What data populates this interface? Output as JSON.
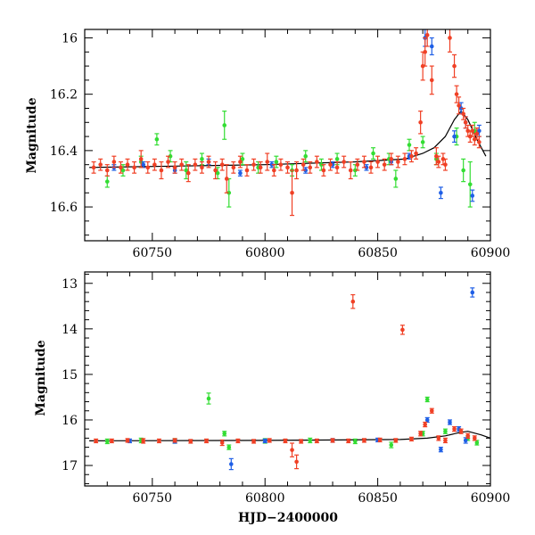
{
  "figure": {
    "bottom_xlabel": "HJD−2400000"
  },
  "colors": {
    "green": "#33dd33",
    "blue": "#1f5fe6",
    "red": "#f04025",
    "model": "#000000",
    "frame": "#000000"
  },
  "chart_data": [
    {
      "type": "scatter",
      "title": "",
      "xlabel": "",
      "ylabel": "Magnitude",
      "xlim": [
        60720,
        60900
      ],
      "ylim": [
        16.72,
        15.97
      ],
      "y_inverted": true,
      "xticks": [
        60750,
        60800,
        60850,
        60900
      ],
      "yticks": [
        16.0,
        16.2,
        16.4,
        16.6
      ],
      "xtick_labels": [
        "60750",
        "60800",
        "60850",
        "60900"
      ],
      "ytick_labels": [
        "16",
        "16.2",
        "16.4",
        "16.6"
      ],
      "grid": false,
      "legend": "none",
      "model_curve": {
        "x": [
          60722,
          60760,
          60800,
          60840,
          60862,
          60870,
          60875,
          60880,
          60884,
          60887,
          60890,
          60894,
          60898
        ],
        "y": [
          16.46,
          16.455,
          16.45,
          16.44,
          16.43,
          16.41,
          16.39,
          16.35,
          16.29,
          16.26,
          16.29,
          16.36,
          16.42
        ]
      },
      "series": [
        {
          "color": "green",
          "points": [
            [
              60730,
              16.51,
              0.02
            ],
            [
              60737,
              16.47,
              0.02
            ],
            [
              60745,
              16.44,
              0.02
            ],
            [
              60752,
              16.36,
              0.02
            ],
            [
              60758,
              16.42,
              0.02
            ],
            [
              60765,
              16.47,
              0.03
            ],
            [
              60772,
              16.43,
              0.02
            ],
            [
              60779,
              16.48,
              0.02
            ],
            [
              60782,
              16.31,
              0.05
            ],
            [
              60784,
              16.55,
              0.05
            ],
            [
              60790,
              16.43,
              0.02
            ],
            [
              60797,
              16.46,
              0.02
            ],
            [
              60805,
              16.44,
              0.02
            ],
            [
              60812,
              16.47,
              0.02
            ],
            [
              60818,
              16.42,
              0.02
            ],
            [
              60825,
              16.45,
              0.02
            ],
            [
              60832,
              16.43,
              0.02
            ],
            [
              60840,
              16.47,
              0.02
            ],
            [
              60848,
              16.41,
              0.02
            ],
            [
              60855,
              16.43,
              0.02
            ],
            [
              60858,
              16.5,
              0.03
            ],
            [
              60864,
              16.38,
              0.02
            ],
            [
              60870,
              16.37,
              0.02
            ],
            [
              60876,
              16.43,
              0.02
            ],
            [
              60885,
              16.35,
              0.03
            ],
            [
              60888,
              16.47,
              0.04
            ],
            [
              60891,
              16.52,
              0.08
            ],
            [
              60893,
              16.33,
              0.03
            ]
          ]
        },
        {
          "color": "blue",
          "points": [
            [
              60733,
              16.46,
              0.01
            ],
            [
              60746,
              16.45,
              0.01
            ],
            [
              60760,
              16.47,
              0.01
            ],
            [
              60775,
              16.44,
              0.01
            ],
            [
              60789,
              16.48,
              0.01
            ],
            [
              60803,
              16.45,
              0.01
            ],
            [
              60818,
              16.47,
              0.01
            ],
            [
              60830,
              16.45,
              0.01
            ],
            [
              60845,
              16.46,
              0.01
            ],
            [
              60856,
              16.44,
              0.01
            ],
            [
              60864,
              16.42,
              0.01
            ],
            [
              60871,
              16.0,
              0.03
            ],
            [
              60874,
              16.03,
              0.03
            ],
            [
              60878,
              16.55,
              0.02
            ],
            [
              60884,
              16.35,
              0.02
            ],
            [
              60887,
              16.25,
              0.02
            ],
            [
              60889,
              16.3,
              0.02
            ],
            [
              60892,
              16.56,
              0.02
            ],
            [
              60895,
              16.33,
              0.02
            ]
          ]
        },
        {
          "color": "red",
          "points": [
            [
              60724,
              16.46,
              0.02
            ],
            [
              60727,
              16.45,
              0.02
            ],
            [
              60730,
              16.47,
              0.02
            ],
            [
              60733,
              16.44,
              0.02
            ],
            [
              60736,
              16.46,
              0.02
            ],
            [
              60739,
              16.45,
              0.02
            ],
            [
              60742,
              16.46,
              0.02
            ],
            [
              60745,
              16.43,
              0.03
            ],
            [
              60748,
              16.46,
              0.02
            ],
            [
              60751,
              16.45,
              0.02
            ],
            [
              60754,
              16.47,
              0.03
            ],
            [
              60757,
              16.44,
              0.02
            ],
            [
              60760,
              16.46,
              0.02
            ],
            [
              60763,
              16.45,
              0.02
            ],
            [
              60766,
              16.48,
              0.03
            ],
            [
              60769,
              16.45,
              0.02
            ],
            [
              60772,
              16.46,
              0.02
            ],
            [
              60775,
              16.44,
              0.02
            ],
            [
              60778,
              16.47,
              0.03
            ],
            [
              60781,
              16.45,
              0.02
            ],
            [
              60783,
              16.5,
              0.05
            ],
            [
              60786,
              16.46,
              0.02
            ],
            [
              60789,
              16.44,
              0.02
            ],
            [
              60792,
              16.47,
              0.02
            ],
            [
              60795,
              16.45,
              0.02
            ],
            [
              60798,
              16.46,
              0.02
            ],
            [
              60801,
              16.44,
              0.03
            ],
            [
              60804,
              16.47,
              0.02
            ],
            [
              60807,
              16.45,
              0.02
            ],
            [
              60810,
              16.46,
              0.02
            ],
            [
              60812,
              16.55,
              0.08
            ],
            [
              60814,
              16.47,
              0.03
            ],
            [
              60817,
              16.45,
              0.02
            ],
            [
              60820,
              16.46,
              0.02
            ],
            [
              60823,
              16.44,
              0.02
            ],
            [
              60826,
              16.47,
              0.02
            ],
            [
              60829,
              16.45,
              0.02
            ],
            [
              60832,
              16.46,
              0.02
            ],
            [
              60835,
              16.44,
              0.02
            ],
            [
              60838,
              16.47,
              0.03
            ],
            [
              60841,
              16.45,
              0.02
            ],
            [
              60844,
              16.44,
              0.02
            ],
            [
              60847,
              16.46,
              0.02
            ],
            [
              60850,
              16.44,
              0.02
            ],
            [
              60853,
              16.45,
              0.02
            ],
            [
              60856,
              16.43,
              0.02
            ],
            [
              60859,
              16.44,
              0.02
            ],
            [
              60862,
              16.43,
              0.02
            ],
            [
              60865,
              16.42,
              0.02
            ],
            [
              60867,
              16.41,
              0.02
            ],
            [
              60869,
              16.3,
              0.04
            ],
            [
              60870,
              16.1,
              0.05
            ],
            [
              60871,
              16.05,
              0.05
            ],
            [
              60872,
              15.99,
              0.04
            ],
            [
              60874,
              16.15,
              0.05
            ],
            [
              60876,
              16.42,
              0.03
            ],
            [
              60877,
              16.44,
              0.02
            ],
            [
              60879,
              16.43,
              0.02
            ],
            [
              60880,
              16.45,
              0.02
            ],
            [
              60882,
              16.0,
              0.05
            ],
            [
              60884,
              16.1,
              0.04
            ],
            [
              60885,
              16.2,
              0.03
            ],
            [
              60886,
              16.24,
              0.03
            ],
            [
              60888,
              16.27,
              0.02
            ],
            [
              60889,
              16.3,
              0.02
            ],
            [
              60890,
              16.33,
              0.02
            ],
            [
              60891,
              16.35,
              0.02
            ],
            [
              60892,
              16.33,
              0.02
            ],
            [
              60893,
              16.36,
              0.02
            ],
            [
              60894,
              16.34,
              0.02
            ],
            [
              60895,
              16.37,
              0.02
            ]
          ]
        }
      ]
    },
    {
      "type": "scatter",
      "title": "",
      "xlabel": "HJD−2400000",
      "ylabel": "Magnitude",
      "xlim": [
        60720,
        60900
      ],
      "ylim": [
        17.45,
        12.75
      ],
      "y_inverted": true,
      "xticks": [
        60750,
        60800,
        60850,
        60900
      ],
      "yticks": [
        13,
        14,
        15,
        16,
        17
      ],
      "xtick_labels": [
        "60750",
        "60800",
        "60850",
        "60900"
      ],
      "ytick_labels": [
        "13",
        "14",
        "15",
        "16",
        "17"
      ],
      "grid": false,
      "legend": "none",
      "model_curve": {
        "x": [
          60722,
          60800,
          60860,
          60872,
          60880,
          60886,
          60890,
          60896,
          60900
        ],
        "y": [
          16.46,
          16.45,
          16.43,
          16.4,
          16.35,
          16.28,
          16.25,
          16.33,
          16.4
        ]
      },
      "series": [
        {
          "color": "green",
          "points": [
            [
              60730,
              16.47,
              0.05
            ],
            [
              60745,
              16.45,
              0.05
            ],
            [
              60760,
              16.46,
              0.05
            ],
            [
              60775,
              15.53,
              0.12
            ],
            [
              60782,
              16.3,
              0.05
            ],
            [
              60784,
              16.6,
              0.05
            ],
            [
              60800,
              16.46,
              0.05
            ],
            [
              60820,
              16.45,
              0.05
            ],
            [
              60840,
              16.47,
              0.05
            ],
            [
              60856,
              16.55,
              0.06
            ],
            [
              60870,
              16.3,
              0.05
            ],
            [
              60872,
              15.55,
              0.05
            ],
            [
              60880,
              16.25,
              0.05
            ],
            [
              60890,
              16.4,
              0.05
            ],
            [
              60894,
              16.5,
              0.05
            ]
          ]
        },
        {
          "color": "blue",
          "points": [
            [
              60740,
              16.46,
              0.04
            ],
            [
              60760,
              16.47,
              0.04
            ],
            [
              60785,
              16.97,
              0.12
            ],
            [
              60800,
              16.46,
              0.04
            ],
            [
              60830,
              16.45,
              0.04
            ],
            [
              60850,
              16.44,
              0.04
            ],
            [
              60872,
              16.0,
              0.05
            ],
            [
              60878,
              16.65,
              0.05
            ],
            [
              60882,
              16.05,
              0.05
            ],
            [
              60886,
              16.2,
              0.05
            ],
            [
              60889,
              16.45,
              0.06
            ],
            [
              60892,
              13.2,
              0.1
            ]
          ]
        },
        {
          "color": "red",
          "points": [
            [
              60725,
              16.46,
              0.04
            ],
            [
              60732,
              16.46,
              0.04
            ],
            [
              60739,
              16.45,
              0.04
            ],
            [
              60746,
              16.46,
              0.05
            ],
            [
              60753,
              16.46,
              0.04
            ],
            [
              60760,
              16.45,
              0.04
            ],
            [
              60767,
              16.47,
              0.04
            ],
            [
              60774,
              16.46,
              0.04
            ],
            [
              60781,
              16.5,
              0.06
            ],
            [
              60788,
              16.46,
              0.04
            ],
            [
              60795,
              16.47,
              0.04
            ],
            [
              60802,
              16.45,
              0.04
            ],
            [
              60809,
              16.46,
              0.04
            ],
            [
              60812,
              16.66,
              0.15
            ],
            [
              60814,
              16.92,
              0.15
            ],
            [
              60816,
              16.47,
              0.04
            ],
            [
              60823,
              16.46,
              0.04
            ],
            [
              60830,
              16.45,
              0.04
            ],
            [
              60837,
              16.46,
              0.04
            ],
            [
              60839,
              13.4,
              0.15
            ],
            [
              60844,
              16.45,
              0.04
            ],
            [
              60851,
              16.44,
              0.04
            ],
            [
              60858,
              16.45,
              0.04
            ],
            [
              60861,
              14.02,
              0.1
            ],
            [
              60865,
              16.42,
              0.04
            ],
            [
              60869,
              16.3,
              0.05
            ],
            [
              60871,
              16.1,
              0.05
            ],
            [
              60874,
              15.8,
              0.05
            ],
            [
              60877,
              16.4,
              0.05
            ],
            [
              60880,
              16.45,
              0.05
            ],
            [
              60884,
              16.2,
              0.05
            ],
            [
              60887,
              16.25,
              0.05
            ],
            [
              60890,
              16.35,
              0.05
            ],
            [
              60893,
              16.4,
              0.05
            ]
          ]
        }
      ]
    }
  ]
}
